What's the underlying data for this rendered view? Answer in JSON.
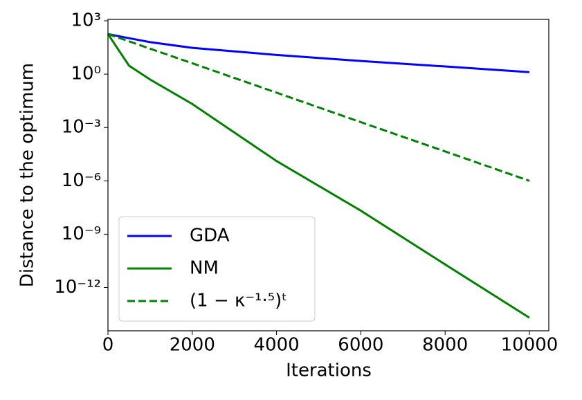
{
  "chart_data": {
    "type": "line",
    "x_label": "Iterations",
    "y_label": "Distance to the optimum",
    "x": [
      0,
      500,
      1000,
      2000,
      4000,
      6000,
      8000,
      10000
    ],
    "series": [
      {
        "name": "GDA",
        "color": "#0000ff",
        "dash": false,
        "values": [
          180,
          105,
          63,
          30,
          12,
          5.5,
          2.7,
          1.3
        ]
      },
      {
        "name": "NM",
        "color": "#008000",
        "dash": false,
        "values": [
          180,
          3,
          0.5,
          0.021,
          1.3e-05,
          2.1e-08,
          2e-11,
          2e-14
        ]
      },
      {
        "name": "(1 − κ⁻¹·⁵)ᵗ",
        "color": "#008000",
        "dash": true,
        "values": [
          180,
          70,
          27,
          4.1,
          0.091,
          0.002,
          4.5e-05,
          1e-06
        ]
      }
    ],
    "xlim": [
      0,
      10460
    ],
    "xticks": [
      0,
      2000,
      4000,
      6000,
      8000,
      10000
    ],
    "ylim": [
      3.7e-15,
      1200
    ],
    "yscale": "log",
    "yticks": [
      {
        "value": 1000,
        "label": "10³"
      },
      {
        "value": 1,
        "label": "10⁰"
      },
      {
        "value": 0.001,
        "label": "10⁻³"
      },
      {
        "value": 1e-06,
        "label": "10⁻⁶"
      },
      {
        "value": 1e-09,
        "label": "10⁻⁹"
      },
      {
        "value": 1e-12,
        "label": "10⁻¹²"
      }
    ],
    "legend": "lower left",
    "grid": false
  }
}
